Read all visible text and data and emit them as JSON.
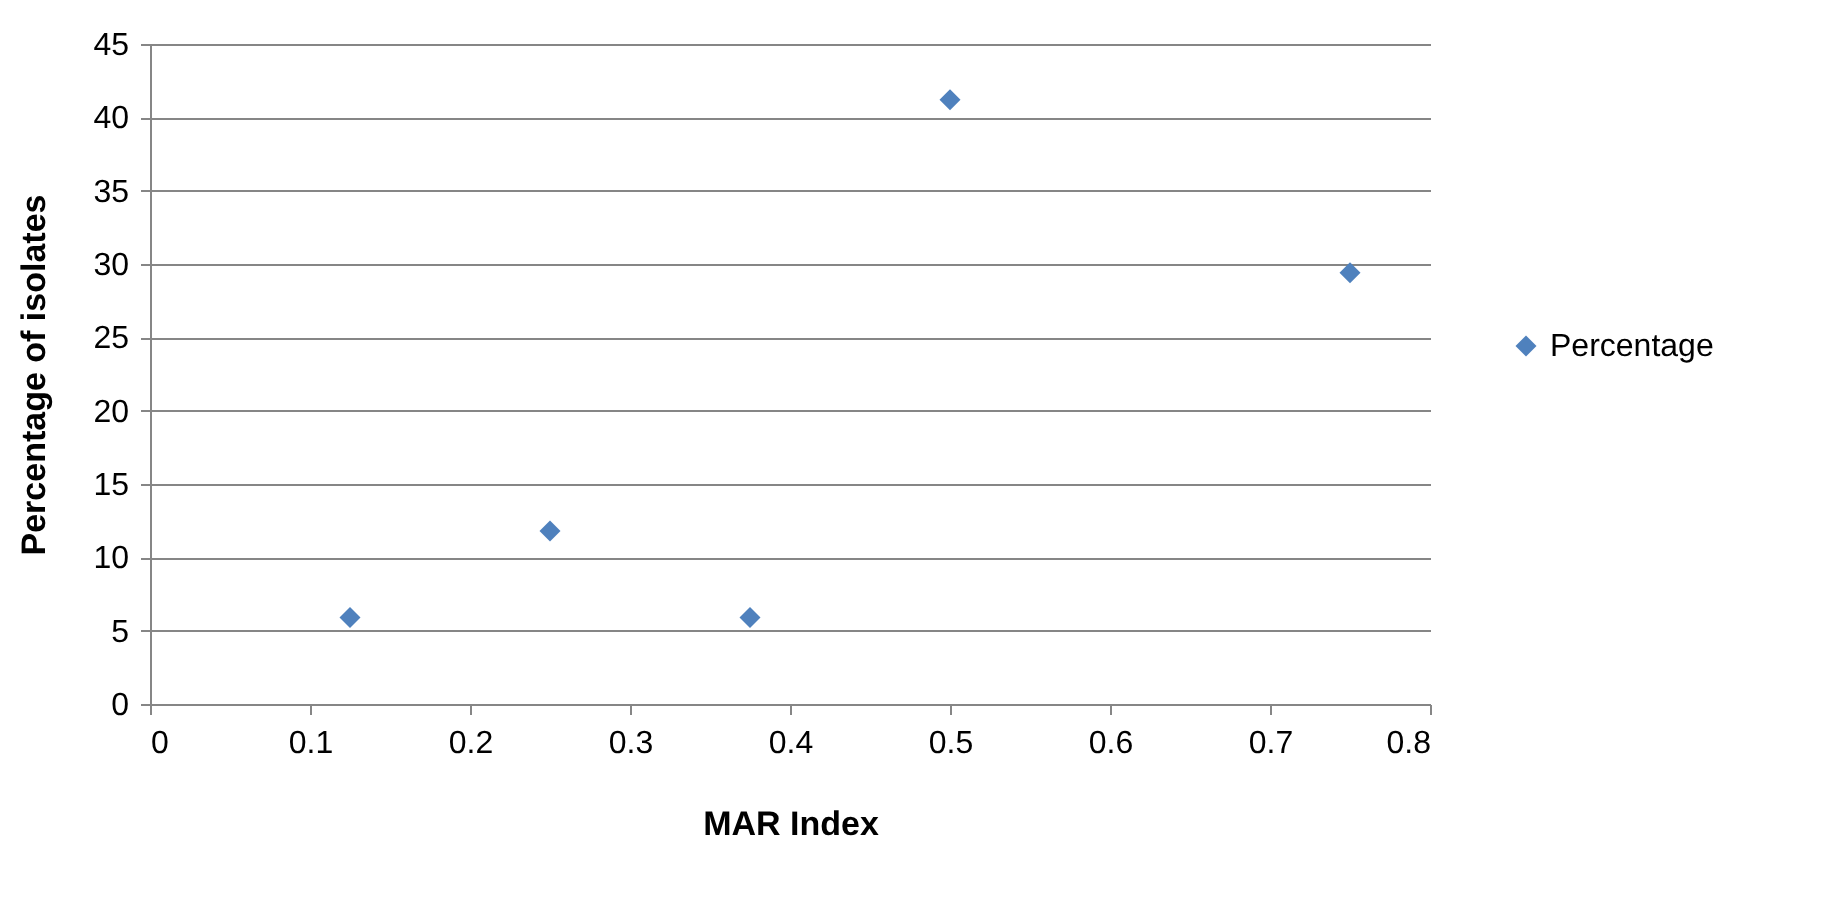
{
  "chart_data": {
    "type": "scatter",
    "xlabel": "MAR Index",
    "ylabel": "Percentage of isolates",
    "x": [
      0.125,
      0.25,
      0.375,
      0.5,
      0.75
    ],
    "series": [
      {
        "name": "Percentage",
        "color": "#4f81bd",
        "values": [
          5.9,
          11.8,
          5.9,
          41.2,
          29.4
        ]
      }
    ],
    "xlim": [
      0,
      0.8
    ],
    "xticks": [
      0,
      0.1,
      0.2,
      0.3,
      0.4,
      0.5,
      0.6,
      0.7,
      0.8
    ],
    "ylim": [
      0,
      45
    ],
    "yticks": [
      0,
      5,
      10,
      15,
      20,
      25,
      30,
      35,
      40,
      45
    ],
    "grid": "y",
    "legend": "right",
    "marker": "diamond"
  }
}
